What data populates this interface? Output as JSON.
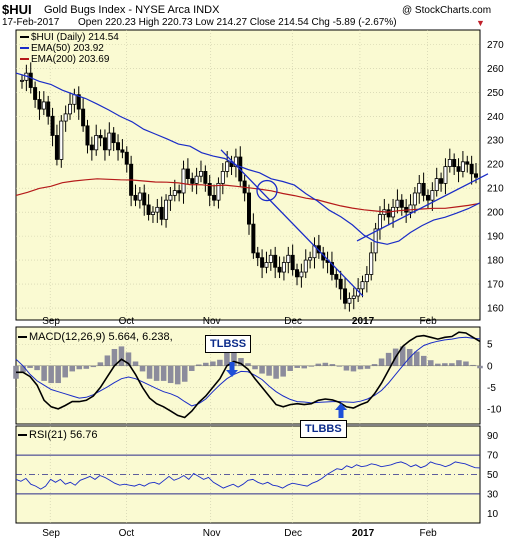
{
  "header": {
    "ticker": "$HUI",
    "name": "Gold Bugs Index - NYSE Arca INDX",
    "date": "17-Feb-2017",
    "watermark": "@ StockCharts.com",
    "ohlc": "Open 220.23  High 220.73  Low 214.27  Close 214.54  Chg -5.89 (-2.67%)",
    "down_marker": "▼"
  },
  "legend": {
    "price": "$HUI (Daily) 214.54",
    "ema50": "EMA(50) 203.92",
    "ema200": "EMA(200) 203.69",
    "macd": "MACD(12,26,9) 5.664, 6.238,",
    "rsi": "RSI(21) 56.76"
  },
  "colors": {
    "panel_bg": "#fafad2",
    "ema50": "#1a2cc7",
    "ema200": "#b51a1a",
    "trendline": "#1a2cc7",
    "macd_line": "#000000",
    "signal_line": "#1a2cc7",
    "histogram": "#8c8c9c",
    "arrow": "#1e4fd8"
  },
  "annotations": {
    "tlbss": "TLBSS",
    "tlbbs": "TLBBS"
  },
  "chart_data": [
    {
      "type": "candlestick",
      "title": "$HUI (Daily)",
      "x_tick_labels": [
        "Sep",
        "Oct",
        "Nov",
        "Dec",
        "2017",
        "Feb"
      ],
      "y_tick_labels": [
        160,
        170,
        180,
        190,
        200,
        210,
        220,
        230,
        240,
        250,
        260,
        270
      ],
      "ylim": [
        155,
        276
      ],
      "grid": true,
      "legend_position": "top-left",
      "series": [
        {
          "name": "$HUI (Daily)",
          "values": [
            255,
            258,
            252,
            247,
            243,
            246,
            240,
            232,
            222,
            238,
            241,
            245,
            249,
            243,
            236,
            228,
            226,
            232,
            231,
            226,
            233,
            229,
            226,
            225,
            220,
            207,
            205,
            208,
            203,
            199,
            200,
            202,
            197,
            205,
            207,
            209,
            208,
            218,
            214,
            212,
            215,
            217,
            212,
            207,
            205,
            212,
            217,
            221,
            219,
            223,
            213,
            208,
            195,
            183,
            181,
            177,
            179,
            182,
            177,
            175,
            179,
            182,
            176,
            173,
            175,
            180,
            181,
            186,
            183,
            180,
            179,
            174,
            172,
            168,
            162,
            164,
            165,
            168,
            171,
            174,
            183,
            193,
            199,
            201,
            198,
            202,
            205,
            202,
            200,
            203,
            208,
            212,
            207,
            205,
            209,
            214,
            212,
            219,
            222,
            219,
            217,
            221,
            220,
            216,
            214.54
          ]
        },
        {
          "name": "EMA(50)",
          "values": [
            258,
            256.6,
            254.6,
            253.3,
            250.9,
            249.1,
            247.4,
            245.1,
            242.6,
            239.9,
            237.7,
            234.6,
            232.6,
            230.6,
            228.4,
            227.5,
            224.8,
            223.4,
            222.4,
            219.6,
            217.8,
            216.4,
            213.9,
            212.8,
            211.3,
            207.7,
            204.6,
            200.8,
            198.1,
            194.7,
            190.4,
            187.6,
            186.6,
            187.9,
            191.5,
            194.4,
            196.7,
            197.9,
            199.6,
            201.5,
            203.92
          ]
        },
        {
          "name": "EMA(200)",
          "values": [
            207,
            208.3,
            209.9,
            210.8,
            212.3,
            213.0,
            213.5,
            213.9,
            213.7,
            213.5,
            213.4,
            213.0,
            212.6,
            212.5,
            212.2,
            211.5,
            211.4,
            211.0,
            211.3,
            210.8,
            210.2,
            209.6,
            208.9,
            207.8,
            206.9,
            205.8,
            205.1,
            203.8,
            202.6,
            201.7,
            201.0,
            200.5,
            200.0,
            200.6,
            201.0,
            201.3,
            201.6,
            201.6,
            202.2,
            202.8,
            203.69
          ]
        }
      ]
    },
    {
      "type": "line",
      "title": "MACD(12,26,9)",
      "y_tick_labels": [
        5,
        0,
        -5,
        -10
      ],
      "ylim": [
        -13.5,
        9
      ],
      "series": [
        {
          "name": "MACD",
          "values": [
            -1.5,
            -1.5,
            -2.5,
            -4.5,
            -8,
            -9.5,
            -10,
            -9.2,
            -8.3,
            -8.3,
            -8,
            -7,
            -5,
            -2.5,
            0,
            1.5,
            0.5,
            -2,
            -5,
            -7.5,
            -8.8,
            -9.5,
            -10.5,
            -11.5,
            -12,
            -10.5,
            -8.5,
            -7,
            -5,
            -3,
            0,
            1,
            0.5,
            -0.8,
            -3,
            -5,
            -7,
            -9,
            -9.5,
            -9,
            -8.8,
            -9,
            -8.8,
            -8,
            -7.7,
            -7.9,
            -8.5,
            -9.5,
            -9.8,
            -9,
            -8.4,
            -6.5,
            -4,
            -1,
            2,
            4.5,
            5.8,
            6.8,
            7,
            6.6,
            6.2,
            6.6,
            6.8,
            7.8,
            7.6,
            6.6,
            5.664
          ]
        },
        {
          "name": "Signal",
          "values": [
            1.5,
            0,
            -2,
            -3.5,
            -4.5,
            -5.5,
            -6,
            -6.5,
            -7,
            -7.5,
            -7.3,
            -6.7,
            -5.8,
            -4.9,
            -3.9,
            -3,
            -2.6,
            -3,
            -3.7,
            -4.5,
            -5.3,
            -6,
            -6.5,
            -7.2,
            -8.3,
            -9.3,
            -8.8,
            -7.7,
            -6,
            -4.4,
            -3,
            -2,
            -1.3,
            -1.4,
            -2.2,
            -3.2,
            -4.7,
            -6,
            -7,
            -7.8,
            -8.3,
            -8.4,
            -8.6,
            -8.5,
            -8.4,
            -8.3,
            -8.3,
            -8.4,
            -8.5,
            -8.2,
            -7.7,
            -6.9,
            -5.7,
            -4,
            -2,
            0,
            1.9,
            3.5,
            4.7,
            5.3,
            5.7,
            6,
            6.2,
            6.5,
            6.6,
            6.4,
            6.238
          ]
        }
      ]
    },
    {
      "type": "line",
      "title": "RSI(21)",
      "y_tick_labels": [
        10,
        30,
        50,
        70,
        90
      ],
      "ylim": [
        0,
        100
      ],
      "series": [
        {
          "name": "RSI(21)",
          "values": [
            45,
            43,
            46,
            40,
            38,
            35,
            38,
            45,
            42,
            45,
            40,
            42,
            39,
            44,
            46,
            48,
            45,
            49,
            47,
            44,
            41,
            39,
            40,
            39,
            38,
            40,
            38,
            41,
            42,
            40,
            44,
            48,
            44,
            46,
            49,
            45,
            51,
            48,
            45,
            47,
            42,
            39,
            36,
            38,
            40,
            37,
            40,
            44,
            45,
            42,
            40,
            42,
            39,
            38,
            36,
            39,
            41,
            40,
            39,
            38,
            41,
            43,
            46,
            50,
            53,
            56,
            55,
            59,
            57,
            60,
            58,
            59,
            61,
            60,
            58,
            59,
            60,
            62,
            63,
            61,
            58,
            60,
            57,
            59,
            63,
            61,
            60,
            58,
            60,
            63,
            62,
            61,
            59,
            57,
            56.76
          ]
        }
      ]
    }
  ]
}
